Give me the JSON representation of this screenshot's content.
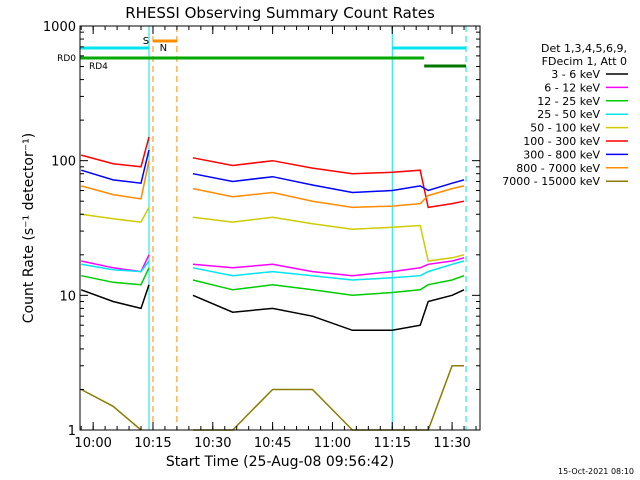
{
  "chart_data": {
    "type": "line",
    "title": "RHESSI Observing Summary Count Rates",
    "xlabel": "Start Time (25-Aug-08 09:56:42)",
    "ylabel": "Count Rate (s⁻¹ detector⁻¹)",
    "y_scale": "log",
    "ylim": [
      1,
      1000
    ],
    "y_tick_labels": [
      "1",
      "10",
      "100",
      "1000"
    ],
    "xlim": [
      "09:56:42",
      "11:37:00"
    ],
    "x_tick_labels": [
      "10:00",
      "10:15",
      "10:30",
      "10:45",
      "11:00",
      "11:15",
      "11:30"
    ],
    "legend_header": [
      "Det 1,3,4,5,6,9,",
      "FDecim 1, Att 0"
    ],
    "legend_placement": "right",
    "timestamp": "15-Oct-2021 08:10",
    "flag_labels": {
      "S": "S",
      "N": "N",
      "RD0": "RD0",
      "RD4": "RD4"
    },
    "flags": {
      "saa": {
        "label": "S",
        "color": "#ff8c00",
        "start": "10:15:00",
        "end": "10:21:00"
      },
      "night": {
        "label": "N",
        "color": "#00e5ee",
        "start": "10:15:10",
        "end": "10:15:20"
      },
      "night_bars": {
        "color": "#00e5ee",
        "segments": [
          [
            "09:56:42",
            "10:14:00"
          ],
          [
            "11:15:00",
            "11:33:30"
          ]
        ]
      },
      "rd0": {
        "label": "RD0",
        "color": "#00aa00",
        "start": "09:56:42",
        "end": "11:23:00"
      },
      "rd4": {
        "label": "RD4",
        "color": "#007700",
        "start": "11:23:00",
        "end": "11:33:30"
      }
    },
    "vlines": [
      {
        "time": "09:56:42",
        "color": "#00e5ee",
        "style": "solid"
      },
      {
        "time": "10:14:00",
        "color": "#00e5ee",
        "style": "solid"
      },
      {
        "time": "10:15:00",
        "color": "#ff8c00",
        "style": "dashed"
      },
      {
        "time": "10:21:00",
        "color": "#ff8c00",
        "style": "dashed"
      },
      {
        "time": "11:15:00",
        "color": "#00e5ee",
        "style": "solid"
      },
      {
        "time": "11:33:30",
        "color": "#00e5ee",
        "style": "dashed"
      }
    ],
    "x": [
      "09:57",
      "10:05",
      "10:12",
      "10:14",
      "10:22",
      "10:25",
      "10:35",
      "10:45",
      "10:55",
      "11:05",
      "11:15",
      "11:22",
      "11:24",
      "11:30",
      "11:33"
    ],
    "series": [
      {
        "name": "3 - 6 keV",
        "color": "#000000",
        "values": [
          11,
          9,
          8,
          12,
          null,
          10,
          7.5,
          8,
          7,
          5.5,
          5.5,
          6,
          9,
          10,
          11
        ]
      },
      {
        "name": "6 - 12 keV",
        "color": "#ff00ff",
        "values": [
          18,
          16,
          15,
          20,
          null,
          17,
          16,
          17,
          15,
          14,
          15,
          16,
          17,
          18,
          19
        ]
      },
      {
        "name": "12 - 25 keV",
        "color": "#00cc00",
        "values": [
          14,
          12.5,
          12,
          16,
          null,
          13,
          11,
          12,
          11,
          10,
          10.5,
          11,
          12,
          13,
          14
        ]
      },
      {
        "name": "25 - 50 keV",
        "color": "#00e5ee",
        "values": [
          17,
          15.5,
          15,
          18,
          null,
          16,
          14,
          15,
          14,
          13,
          13.5,
          14,
          15,
          17,
          18
        ]
      },
      {
        "name": "50 - 100 keV",
        "color": "#cccc00",
        "values": [
          40,
          37,
          35,
          45,
          null,
          38,
          35,
          38,
          34,
          31,
          32,
          33,
          18,
          19,
          20
        ]
      },
      {
        "name": "100 - 300 keV",
        "color": "#ff0000",
        "values": [
          110,
          95,
          90,
          150,
          null,
          105,
          92,
          100,
          88,
          80,
          82,
          85,
          45,
          48,
          50
        ]
      },
      {
        "name": "300 - 800 keV",
        "color": "#0000ff",
        "values": [
          85,
          72,
          68,
          120,
          null,
          80,
          70,
          76,
          66,
          58,
          60,
          65,
          60,
          68,
          72
        ]
      },
      {
        "name": "800 - 7000 keV",
        "color": "#ff8c00",
        "values": [
          65,
          56,
          52,
          100,
          null,
          62,
          54,
          58,
          50,
          45,
          46,
          48,
          55,
          62,
          65
        ]
      },
      {
        "name": "7000 - 15000 keV",
        "color": "#8b7d00",
        "values": [
          2,
          1.5,
          1,
          null,
          null,
          1,
          1,
          2,
          2,
          1,
          1,
          1,
          1,
          3,
          3
        ]
      }
    ]
  }
}
